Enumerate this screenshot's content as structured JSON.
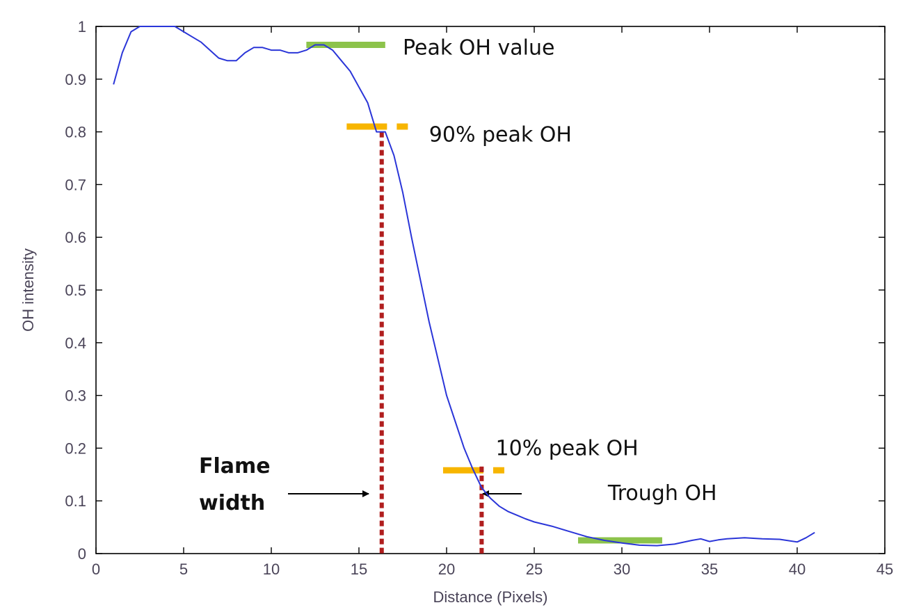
{
  "chart_data": {
    "type": "line",
    "title": "",
    "xlabel": "Distance (Pixels)",
    "ylabel": "OH intensity",
    "xlim": [
      0,
      45
    ],
    "ylim": [
      0,
      1
    ],
    "grid": false,
    "x_ticks": [
      0,
      5,
      10,
      15,
      20,
      25,
      30,
      35,
      40,
      45
    ],
    "x_tick_labels": [
      "0",
      "5",
      "10",
      "15",
      "20",
      "25",
      "30",
      "35",
      "40",
      "45"
    ],
    "y_ticks": [
      0,
      0.1,
      0.2,
      0.3,
      0.4,
      0.5,
      0.6,
      0.7,
      0.8,
      0.9,
      1
    ],
    "y_tick_labels": [
      "0",
      "0.1",
      "0.2",
      "0.3",
      "0.4",
      "0.5",
      "0.6",
      "0.7",
      "0.8",
      "0.9",
      "1"
    ],
    "series": [
      {
        "color": "#2a35d8",
        "x": [
          1,
          1.5,
          2,
          2.5,
          3,
          3.5,
          4,
          4.5,
          5,
          5.5,
          6,
          6.5,
          7,
          7.5,
          8,
          8.5,
          9,
          9.5,
          10,
          10.5,
          11,
          11.5,
          12,
          12.5,
          13,
          13.5,
          14,
          14.5,
          15,
          15.5,
          16,
          16.5,
          17,
          17.5,
          18,
          18.5,
          19,
          19.5,
          20,
          20.5,
          21,
          21.5,
          22,
          22.5,
          23,
          23.5,
          24,
          24.5,
          25,
          26,
          27,
          28,
          29,
          30,
          31,
          32,
          33,
          34,
          34.5,
          35,
          35.5,
          36,
          37,
          38,
          39,
          40,
          40.5,
          41
        ],
        "y": [
          0.89,
          0.95,
          0.99,
          1.0,
          1.0,
          1.0,
          1.0,
          1.0,
          0.99,
          0.98,
          0.97,
          0.955,
          0.94,
          0.935,
          0.935,
          0.95,
          0.96,
          0.96,
          0.955,
          0.955,
          0.95,
          0.95,
          0.955,
          0.965,
          0.965,
          0.955,
          0.935,
          0.915,
          0.885,
          0.855,
          0.8,
          0.8,
          0.755,
          0.685,
          0.6,
          0.52,
          0.44,
          0.37,
          0.3,
          0.25,
          0.2,
          0.16,
          0.125,
          0.105,
          0.09,
          0.08,
          0.073,
          0.066,
          0.06,
          0.052,
          0.042,
          0.032,
          0.025,
          0.02,
          0.016,
          0.015,
          0.018,
          0.025,
          0.028,
          0.023,
          0.026,
          0.028,
          0.03,
          0.028,
          0.027,
          0.022,
          0.03,
          0.04
        ]
      }
    ],
    "annotations": [
      {
        "text": "Peak OH value",
        "color": "#8cc34b",
        "line_x": [
          12,
          16.5
        ],
        "line_y": 0.965,
        "text_x": 17.5,
        "text_y": 0.96
      },
      {
        "text": "90% peak OH",
        "color": "#f7b500",
        "line_x": [
          14.3,
          18.2
        ],
        "line_y": 0.81,
        "text_x": 19,
        "text_y": 0.795
      },
      {
        "text": "10% peak OH",
        "color": "#f7b500",
        "line_x": [
          19.8,
          24.2
        ],
        "line_y": 0.158,
        "text_x": 22.8,
        "text_y": 0.2
      },
      {
        "text": "Trough OH",
        "color": "#8cc34b",
        "line_x": [
          27.5,
          32.3
        ],
        "line_y": 0.025,
        "text_x": 29.2,
        "text_y": 0.115
      }
    ],
    "flame_width": {
      "label_line1": "Flame",
      "label_line2": "width",
      "color": "#b01e1e",
      "x_left": 16.3,
      "x_right": 22,
      "y_top_left": 0.8,
      "y_top_right": 0.165
    },
    "colors": {
      "axis": "#000000",
      "tick_text": "#4a4458",
      "arrow": "#000000"
    }
  }
}
